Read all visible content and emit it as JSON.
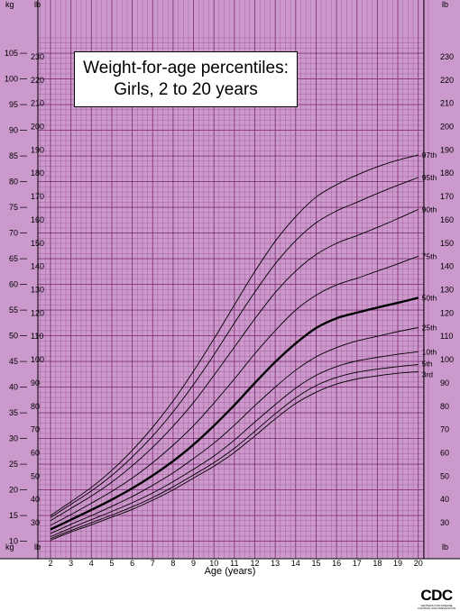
{
  "chart_data": {
    "type": "line",
    "title_line1": "Weight-for-age percentiles:",
    "title_line2": "Girls, 2 to 20 years",
    "xlabel": "Age (years)",
    "y_unit_left": "kg",
    "y_unit_right": "lb",
    "x_ticks": [
      "2",
      "3",
      "4",
      "5",
      "6",
      "7",
      "8",
      "9",
      "10",
      "11",
      "12",
      "13",
      "14",
      "15",
      "16",
      "17",
      "18",
      "19",
      "20"
    ],
    "kg_ticks": [
      "10",
      "15",
      "20",
      "25",
      "30",
      "35",
      "40",
      "45",
      "50",
      "55",
      "60",
      "65",
      "70",
      "75",
      "80",
      "85",
      "90",
      "95",
      "100",
      "105"
    ],
    "lb_ticks": [
      "30",
      "40",
      "50",
      "60",
      "70",
      "80",
      "90",
      "100",
      "110",
      "120",
      "130",
      "140",
      "150",
      "160",
      "170",
      "180",
      "190",
      "200",
      "210",
      "220",
      "230"
    ],
    "xlim": [
      1.5,
      20.5
    ],
    "ylim_kg": [
      8,
      108
    ],
    "x": [
      2,
      3,
      4,
      5,
      6,
      7,
      8,
      9,
      10,
      11,
      12,
      13,
      14,
      15,
      16,
      17,
      18,
      19,
      20
    ],
    "series": [
      {
        "name": "3rd",
        "values": [
          10.2,
          11.8,
          13.2,
          14.7,
          16.2,
          18.0,
          20.0,
          22.3,
          24.6,
          27.3,
          30.5,
          33.8,
          36.8,
          39.0,
          40.6,
          41.6,
          42.2,
          42.7,
          43.0
        ]
      },
      {
        "name": "5th",
        "values": [
          10.5,
          12.1,
          13.6,
          15.1,
          16.7,
          18.5,
          20.6,
          22.9,
          25.3,
          28.1,
          31.4,
          34.8,
          37.9,
          40.3,
          41.9,
          42.9,
          43.5,
          44.0,
          44.4
        ]
      },
      {
        "name": "10th",
        "values": [
          10.9,
          12.6,
          14.2,
          15.8,
          17.5,
          19.4,
          21.6,
          24.0,
          26.6,
          29.7,
          33.2,
          36.6,
          39.8,
          42.3,
          44.0,
          45.1,
          45.8,
          46.4,
          46.9
        ]
      },
      {
        "name": "25th",
        "values": [
          11.5,
          13.3,
          15.0,
          16.8,
          18.7,
          20.9,
          23.3,
          26.1,
          29.1,
          32.6,
          36.4,
          40.0,
          43.3,
          45.9,
          47.7,
          49.0,
          49.9,
          50.8,
          51.6
        ]
      },
      {
        "name": "50th",
        "values": [
          12.3,
          14.2,
          16.1,
          18.1,
          20.3,
          22.8,
          25.6,
          28.8,
          32.5,
          36.5,
          40.8,
          44.9,
          48.5,
          51.5,
          53.4,
          54.5,
          55.5,
          56.4,
          57.4
        ]
      },
      {
        "name": "75th",
        "values": [
          13.1,
          15.2,
          17.4,
          19.7,
          22.3,
          25.3,
          28.7,
          32.5,
          36.9,
          41.6,
          46.5,
          51.0,
          55.0,
          57.9,
          59.9,
          61.2,
          62.6,
          64.0,
          65.5
        ]
      },
      {
        "name": "90th",
        "values": [
          14.0,
          16.4,
          18.8,
          21.5,
          24.7,
          28.3,
          32.4,
          37.0,
          42.3,
          47.8,
          53.3,
          58.4,
          62.6,
          65.8,
          68.0,
          69.5,
          71.1,
          72.8,
          74.6
        ]
      },
      {
        "name": "95th",
        "values": [
          14.6,
          17.2,
          19.8,
          22.8,
          26.4,
          30.5,
          35.2,
          40.5,
          46.3,
          52.5,
          58.5,
          64.0,
          68.5,
          72.0,
          74.3,
          76.0,
          77.7,
          79.3,
          80.8
        ]
      },
      {
        "name": "97th",
        "values": [
          15.0,
          17.7,
          20.5,
          23.8,
          27.7,
          32.2,
          37.3,
          43.1,
          49.4,
          56.0,
          62.5,
          68.4,
          73.2,
          77.0,
          79.4,
          81.3,
          82.9,
          84.2,
          85.2
        ]
      }
    ],
    "colors": {
      "paper": "#cc99cc",
      "grid": "#7d2a6e",
      "line": "#000000",
      "title_bg": "#ffffff"
    },
    "grid": true
  },
  "logo": {
    "text": "CDC",
    "subtext": "CENTERS FOR DISEASE CONTROL AND PREVENTION"
  }
}
